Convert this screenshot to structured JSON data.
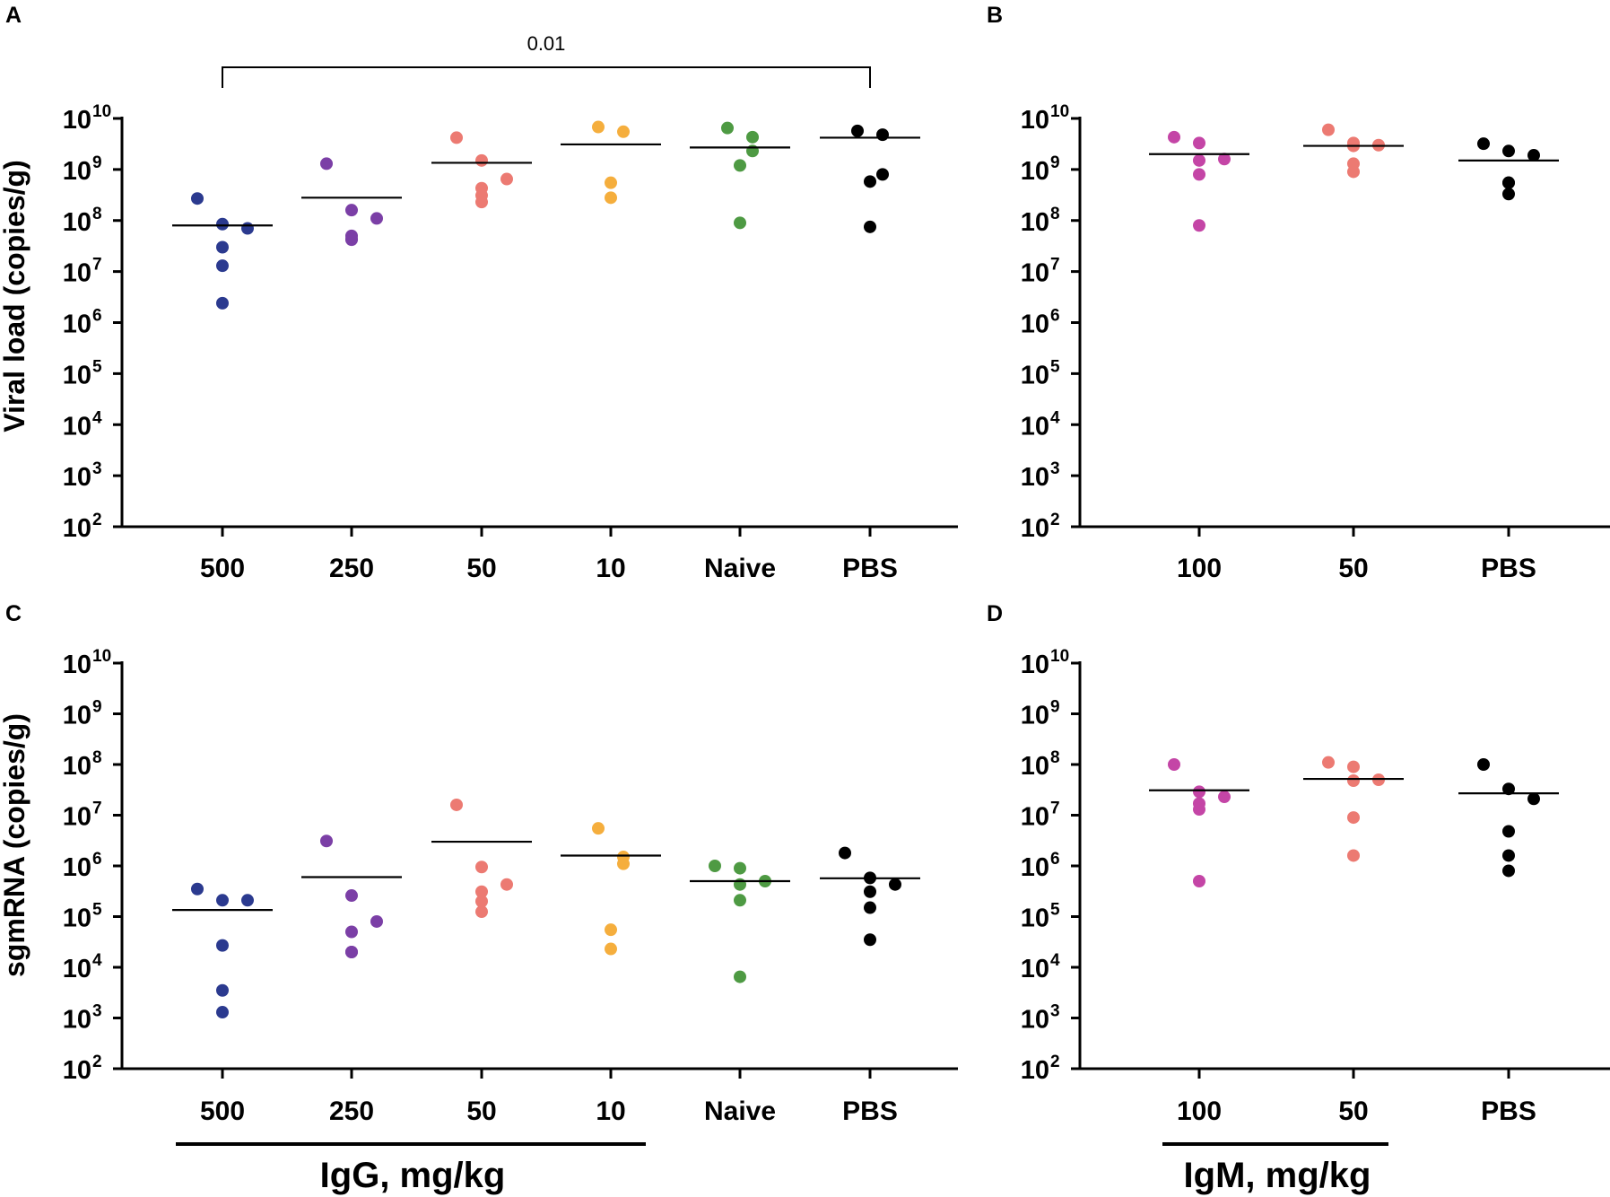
{
  "chart_data": [
    {
      "panel": "A",
      "type": "scatter",
      "ylabel": "Viral load (copies/g)",
      "yscale": "log10",
      "ylim": [
        100,
        10000000000
      ],
      "ytick_base": "10",
      "ytick_exponents": [
        "2",
        "3",
        "4",
        "5",
        "6",
        "7",
        "8",
        "9",
        "10"
      ],
      "categories": [
        "500",
        "250",
        "50",
        "10",
        "Naive",
        "PBS"
      ],
      "series": [
        {
          "name": "500",
          "color": "#2b3a8f",
          "values": [
            270000000.0,
            85000000.0,
            70000000.0,
            30000000.0,
            13000000.0,
            2400000.0
          ],
          "mean": 80000000.0
        },
        {
          "name": "250",
          "color": "#7b3fa6",
          "values": [
            1300000000.0,
            160000000.0,
            110000000.0,
            50000000.0,
            43000000.0,
            42000000.0
          ],
          "mean": 280000000.0
        },
        {
          "name": "50",
          "color": "#ec7a72",
          "values": [
            4200000000.0,
            1500000000.0,
            650000000.0,
            430000000.0,
            310000000.0,
            230000000.0
          ],
          "mean": 1350000000.0
        },
        {
          "name": "10",
          "color": "#f5ae3d",
          "values": [
            6800000000.0,
            5500000000.0,
            550000000.0,
            280000000.0
          ],
          "mean": 3100000000.0
        },
        {
          "name": "Naive",
          "color": "#4e9a43",
          "values": [
            6500000000.0,
            4300000000.0,
            2300000000.0,
            1200000000.0,
            90000000.0
          ],
          "mean": 2700000000.0
        },
        {
          "name": "PBS",
          "color": "#000000",
          "values": [
            5700000000.0,
            4800000000.0,
            800000000.0,
            580000000.0,
            75000000.0
          ],
          "mean": 4200000000.0
        }
      ],
      "annotation": {
        "text": "0.01",
        "from": "500",
        "to": "PBS"
      }
    },
    {
      "panel": "B",
      "type": "scatter",
      "ylabel": "",
      "yscale": "log10",
      "ylim": [
        100,
        10000000000
      ],
      "ytick_base": "10",
      "ytick_exponents": [
        "2",
        "3",
        "4",
        "5",
        "6",
        "7",
        "8",
        "9",
        "10"
      ],
      "categories": [
        "100",
        "50",
        "PBS"
      ],
      "series": [
        {
          "name": "100",
          "color": "#c445a6",
          "values": [
            4300000000.0,
            3300000000.0,
            1600000000.0,
            1500000000.0,
            800000000.0,
            80000000.0
          ],
          "mean": 2000000000.0
        },
        {
          "name": "50",
          "color": "#ec7a72",
          "values": [
            6000000000.0,
            3300000000.0,
            3000000000.0,
            2900000000.0,
            1300000000.0,
            900000000.0
          ],
          "mean": 2900000000.0
        },
        {
          "name": "PBS",
          "color": "#000000",
          "values": [
            3200000000.0,
            2300000000.0,
            1900000000.0,
            550000000.0,
            550000000.0,
            330000000.0
          ],
          "mean": 1500000000.0
        }
      ]
    },
    {
      "panel": "C",
      "type": "scatter",
      "ylabel": "sgmRNA (copies/g)",
      "yscale": "log10",
      "ylim": [
        100,
        10000000000
      ],
      "ytick_base": "10",
      "ytick_exponents": [
        "2",
        "3",
        "4",
        "5",
        "6",
        "7",
        "8",
        "9",
        "10"
      ],
      "categories": [
        "500",
        "250",
        "50",
        "10",
        "Naive",
        "PBS"
      ],
      "series": [
        {
          "name": "500",
          "color": "#2b3a8f",
          "values": [
            350000.0,
            210000.0,
            210000.0,
            27000.0,
            3500.0,
            1300.0
          ],
          "mean": 135000.0
        },
        {
          "name": "250",
          "color": "#7b3fa6",
          "values": [
            3100000.0,
            260000.0,
            80000.0,
            50000.0,
            20000.0,
            20000.0
          ],
          "mean": 600000.0
        },
        {
          "name": "50",
          "color": "#ec7a72",
          "values": [
            16000000.0,
            950000.0,
            430000.0,
            310000.0,
            200000.0,
            125000.0
          ],
          "mean": 3000000.0
        },
        {
          "name": "10",
          "color": "#f5ae3d",
          "values": [
            5500000.0,
            1500000.0,
            1100000.0,
            55000.0,
            23000.0
          ],
          "mean": 1600000.0
        },
        {
          "name": "Naive",
          "color": "#4e9a43",
          "values": [
            1000000.0,
            900000.0,
            500000.0,
            430000.0,
            210000.0,
            6500.0
          ],
          "mean": 500000.0
        },
        {
          "name": "PBS",
          "color": "#000000",
          "values": [
            1800000.0,
            580000.0,
            430000.0,
            310000.0,
            150000.0,
            35000.0
          ],
          "mean": 570000.0
        }
      ]
    },
    {
      "panel": "D",
      "type": "scatter",
      "ylabel": "",
      "yscale": "log10",
      "ylim": [
        100,
        10000000000
      ],
      "ytick_base": "10",
      "ytick_exponents": [
        "2",
        "3",
        "4",
        "5",
        "6",
        "7",
        "8",
        "9",
        "10"
      ],
      "categories": [
        "100",
        "50",
        "PBS"
      ],
      "series": [
        {
          "name": "100",
          "color": "#c445a6",
          "values": [
            100000000.0,
            29000000.0,
            23000000.0,
            17000000.0,
            13000000.0,
            500000.0
          ],
          "mean": 31000000.0
        },
        {
          "name": "50",
          "color": "#ec7a72",
          "values": [
            110000000.0,
            90000000.0,
            50000000.0,
            48000000.0,
            9000000.0,
            1600000.0
          ],
          "mean": 52000000.0
        },
        {
          "name": "PBS",
          "color": "#000000",
          "values": [
            100000000.0,
            33000000.0,
            21000000.0,
            4800000.0,
            1600000.0,
            800000.0
          ],
          "mean": 27000000.0
        }
      ]
    }
  ],
  "group_labels": {
    "left": "IgG, mg/kg",
    "right": "IgM, mg/kg"
  }
}
